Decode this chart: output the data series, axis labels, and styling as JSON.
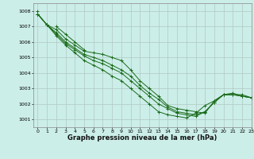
{
  "title": "Graphe pression niveau de la mer (hPa)",
  "bg_color": "#cceee8",
  "grid_color": "#b0c8c4",
  "line_color": "#1a6b1a",
  "xlim": [
    -0.5,
    23
  ],
  "ylim": [
    1000.5,
    1008.5
  ],
  "yticks": [
    1001,
    1002,
    1003,
    1004,
    1005,
    1006,
    1007,
    1008
  ],
  "xticks": [
    0,
    1,
    2,
    3,
    4,
    5,
    6,
    7,
    8,
    9,
    10,
    11,
    12,
    13,
    14,
    15,
    16,
    17,
    18,
    19,
    20,
    21,
    22,
    23
  ],
  "xlabel_fontsize": 6.0,
  "tick_fontsize": 4.5,
  "series": [
    [
      1008.0,
      null,
      1007.0,
      1006.5,
      1006.0,
      1005.5,
      null,
      null,
      null,
      null,
      null,
      null,
      null,
      null,
      null,
      null,
      null,
      null,
      null,
      null,
      null,
      null,
      null,
      null
    ],
    [
      1007.8,
      1007.1,
      1006.8,
      1006.2,
      1005.8,
      1005.4,
      1005.3,
      1005.2,
      1005.0,
      1004.8,
      1004.2,
      1003.5,
      1003.0,
      1002.5,
      1001.9,
      1001.7,
      1001.6,
      1001.5,
      1001.4,
      1002.2,
      1002.6,
      1002.6,
      1002.6,
      1002.4
    ],
    [
      1007.8,
      1007.1,
      1006.6,
      1006.0,
      1005.6,
      1005.2,
      1005.0,
      1004.8,
      1004.5,
      1004.2,
      1003.8,
      1003.2,
      1002.7,
      1002.3,
      1001.8,
      1001.5,
      1001.4,
      1001.3,
      1001.5,
      1002.1,
      1002.6,
      1002.6,
      1002.5,
      1002.4
    ],
    [
      1007.8,
      1007.1,
      1006.5,
      1005.9,
      1005.5,
      1005.1,
      1004.8,
      1004.6,
      1004.3,
      1004.0,
      1003.5,
      1003.0,
      1002.5,
      1002.0,
      1001.7,
      1001.4,
      1001.3,
      1001.2,
      1001.5,
      1002.1,
      1002.6,
      1002.6,
      1002.5,
      1002.4
    ],
    [
      1007.8,
      1007.1,
      1006.4,
      1005.8,
      1005.3,
      1004.8,
      1004.5,
      1004.2,
      1003.8,
      1003.5,
      1003.0,
      1002.5,
      1002.0,
      1001.5,
      1001.3,
      1001.2,
      1001.1,
      1001.4,
      1001.9,
      1002.2,
      1002.6,
      1002.7,
      1002.5,
      1002.4
    ]
  ]
}
